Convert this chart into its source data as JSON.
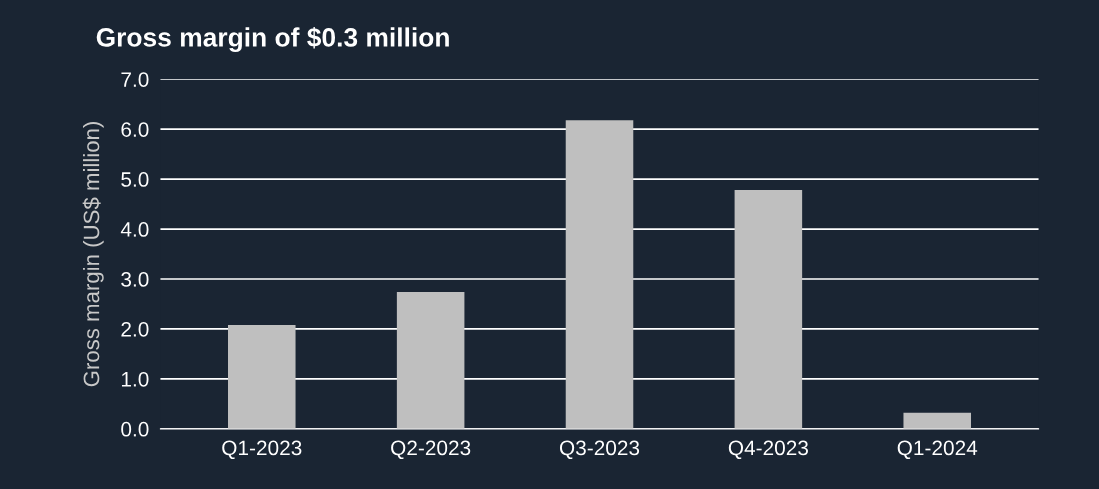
{
  "chart_data": {
    "type": "bar",
    "title": "Gross margin of $0.3 million",
    "ylabel": "Gross margin (US$ million)",
    "categories": [
      "Q1-2023",
      "Q2-2023",
      "Q3-2023",
      "Q4-2023",
      "Q1-2024"
    ],
    "values": [
      2.08,
      2.74,
      6.18,
      4.78,
      0.32
    ],
    "color": "#bfbfbf",
    "ylim": [
      0,
      7
    ],
    "yticks": [
      {
        "value": 0,
        "label": "0.0"
      },
      {
        "value": 1,
        "label": "1.0"
      },
      {
        "value": 2,
        "label": "2.0"
      },
      {
        "value": 3,
        "label": "3.0"
      },
      {
        "value": 4,
        "label": "4.0"
      },
      {
        "value": 5,
        "label": "5.0"
      },
      {
        "value": 6,
        "label": "6.0"
      },
      {
        "value": 7,
        "label": "7.0"
      }
    ],
    "grid": "y"
  }
}
